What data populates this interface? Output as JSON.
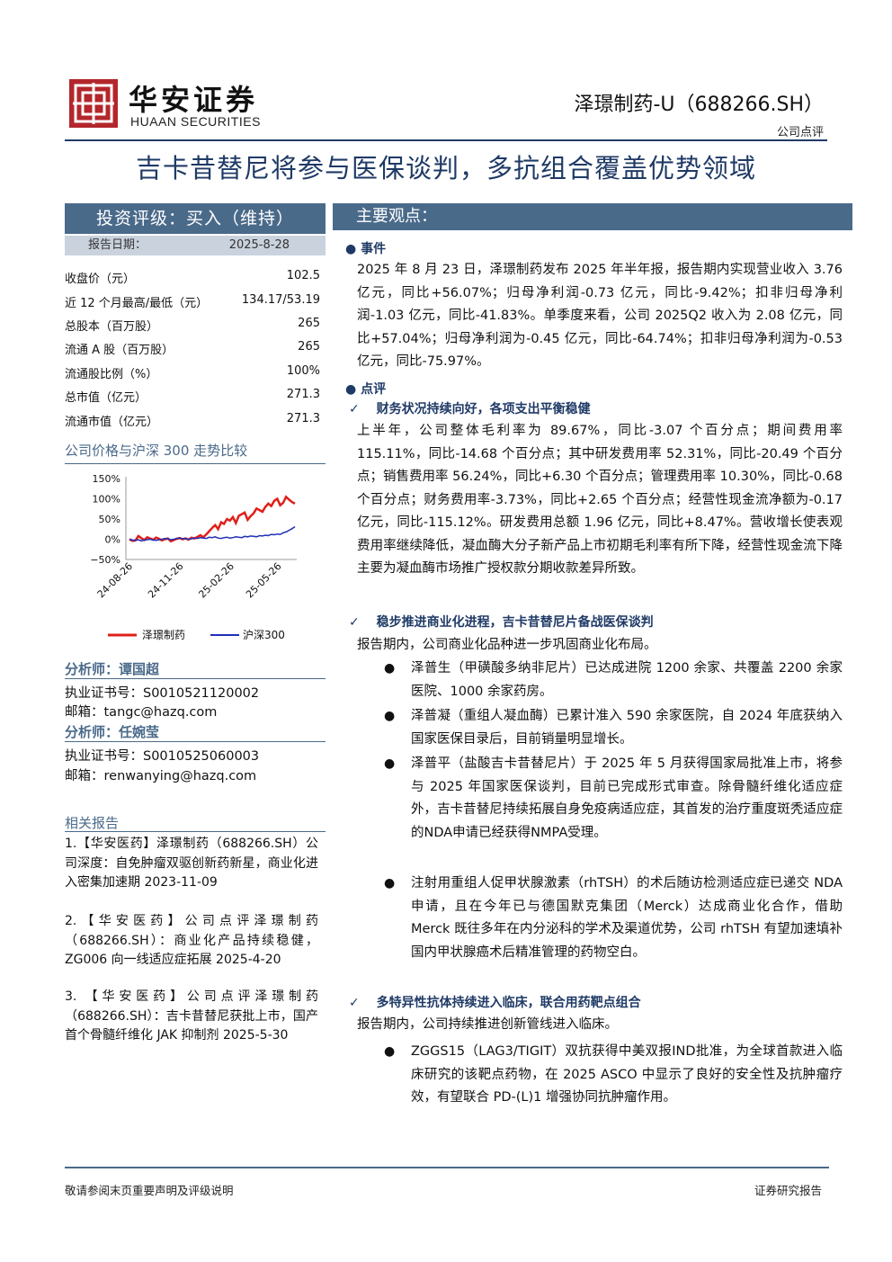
{
  "header": {
    "brand_cn": "华安证券",
    "brand_en": "HUAAN SECURITIES",
    "stock": "泽璟制药-U（688266.SH）",
    "report_type": "公司点评"
  },
  "title": "吉卡昔替尼将参与医保谈判，多抗组合覆盖优势领域",
  "sidebar": {
    "rating": "投资评级：买入（维持）",
    "date_label": "报告日期：",
    "date_value": "2025-8-28",
    "kv": [
      {
        "k": "收盘价（元）",
        "v": "102.5"
      },
      {
        "k": "近 12 个月最高/最低（元）",
        "v": "134.17/53.19"
      },
      {
        "k": "总股本（百万股）",
        "v": "265"
      },
      {
        "k": "流通 A 股（百万股）",
        "v": "265"
      },
      {
        "k": "流通股比例（%）",
        "v": "100%"
      },
      {
        "k": "总市值（亿元）",
        "v": "271.3"
      },
      {
        "k": "流通市值（亿元）",
        "v": "271.3"
      }
    ],
    "chart_title": "公司价格与沪深 300 走势比较",
    "analysts": [
      {
        "name": "分析师：谭国超",
        "cert": "执业证书号：S0010521120002",
        "email": "邮箱：tangc@hazq.com"
      },
      {
        "name": "分析师：任婉莹",
        "cert": "执业证书号：S0010525060003",
        "email": "邮箱：renwanying@hazq.com"
      }
    ],
    "related_title": "相关报告",
    "related": [
      "1.【华安医药】泽璟制药（688266.SH）公司深度：自免肿瘤双驱创新药新星，商业化进入密集加速期 2023-11-09",
      "2.【华安医药】公司点评泽璟制药（688266.SH）：商业化产品持续稳健，ZG006 向一线适应症拓展 2025-4-20",
      "3. 【华安医药】公司点评泽璟制药（688266.SH）：吉卡昔替尼获批上市，国产首个骨髓纤维化 JAK 抑制剂 2025-5-30"
    ]
  },
  "chart_data": {
    "type": "line",
    "title": "公司价格与沪深 300 走势比较",
    "x_ticks": [
      "24-08-26",
      "24-11-26",
      "25-02-26",
      "25-05-26"
    ],
    "y_ticks": [
      "150%",
      "100%",
      "50%",
      "0%",
      "−50%"
    ],
    "ylim": [
      -50,
      150
    ],
    "legend_placement": "bottom",
    "series": [
      {
        "name": "泽璟制药",
        "color": "#e0201b",
        "values": [
          0,
          -4,
          -3,
          8,
          3,
          -2,
          5,
          2,
          -1,
          4,
          1,
          -3,
          0,
          2,
          -5,
          -2,
          1,
          3,
          0,
          2,
          -1,
          4,
          2,
          6,
          10,
          5,
          12,
          20,
          28,
          35,
          25,
          42,
          38,
          50,
          46,
          55,
          40,
          58,
          62,
          66,
          48,
          57,
          64,
          76,
          72,
          68,
          80,
          88,
          82,
          95,
          100,
          84,
          90,
          105,
          98,
          92,
          88
        ]
      },
      {
        "name": "沪深300",
        "color": "#1f2fb8",
        "values": [
          0,
          -2,
          -3,
          -1,
          -4,
          -2,
          -1,
          0,
          -2,
          -3,
          -1,
          0,
          2,
          1,
          -1,
          0,
          2,
          3,
          1,
          2,
          0,
          1,
          3,
          2,
          4,
          3,
          2,
          5,
          4,
          6,
          3,
          2,
          4,
          5,
          3,
          4,
          6,
          5,
          4,
          7,
          6,
          8,
          7,
          6,
          9,
          8,
          10,
          9,
          12,
          11,
          13,
          12,
          16,
          18,
          22,
          26,
          31
        ]
      }
    ]
  },
  "main": {
    "view_title": "主要观点：",
    "event_title": "事件",
    "event_text": "2025 年 8 月 23 日，泽璟制药发布 2025 年半年报，报告期内实现营业收入 3.76 亿元，同比+56.07%；归母净利润-0.73 亿元，同比-9.42%；扣非归母净利润-1.03 亿元，同比-41.83%。单季度来看，公司 2025Q2 收入为 2.08 亿元，同比+57.04%；归母净利润为-0.45 亿元，同比-64.74%；扣非归母净利润为-0.53 亿元，同比-75.97%。",
    "comment_title": "点评",
    "sub1": "财务状况持续向好，各项支出平衡稳健",
    "text1": "上半年，公司整体毛利率为 89.67%，同比-3.07 个百分点；期间费用率 115.11%，同比-14.68 个百分点；其中研发费用率 52.31%，同比-20.49 个百分点；销售费用率 56.24%，同比+6.30 个百分点；管理费用率 10.30%，同比-0.68 个百分点；财务费用率-3.73%，同比+2.65 个百分点；经营性现金流净额为-0.17 亿元，同比-115.12%。研发费用总额 1.96 亿元，同比+8.47%。营收增长使表观费用率继续降低，凝血酶大分子新产品上市初期毛利率有所下降，经营性现金流下降主要为凝血酶市场推广授权款分期收款差异所致。",
    "sub2": "稳步推进商业化进程，吉卡昔替尼片备战医保谈判",
    "text2": "报告期内，公司商业化品种进一步巩固商业化布局。",
    "items2": [
      "泽普生（甲磺酸多纳非尼片）已达成进院 1200 余家、共覆盖 2200 余家医院、1000 余家药房。",
      "泽普凝（重组人凝血酶）已累计准入 590 余家医院，自 2024 年底获纳入国家医保目录后，目前销量明显增长。",
      "泽普平（盐酸吉卡昔替尼片）于 2025 年 5 月获得国家局批准上市，将参与 2025 年国家医保谈判，目前已完成形式审查。除骨髓纤维化适应症外，吉卡昔替尼持续拓展自身免疫病适应症，其首发的治疗重度斑秃适应症的NDA申请已经获得NMPA受理。",
      "注射用重组人促甲状腺激素（rhTSH）的术后随访检测适应症已递交 NDA 申请，且在今年已与德国默克集团（Merck）达成商业化合作，借助 Merck 既往多年在内分泌科的学术及渠道优势，公司 rhTSH 有望加速填补国内甲状腺癌术后精准管理的药物空白。"
    ],
    "sub3": "多特异性抗体持续进入临床，联合用药靶点组合",
    "text3": "报告期内，公司持续推进创新管线进入临床。",
    "items3": [
      "ZGGS15（LAG3/TIGIT）双抗获得中美双报IND批准，为全球首款进入临床研究的该靶点药物，在 2025 ASCO 中显示了良好的安全性及抗肿瘤疗效，有望联合 PD-(L)1 增强协同抗肿瘤作用。"
    ]
  },
  "footer": {
    "left": "敬请参阅末页重要声明及评级说明",
    "right": "证券研究报告"
  }
}
